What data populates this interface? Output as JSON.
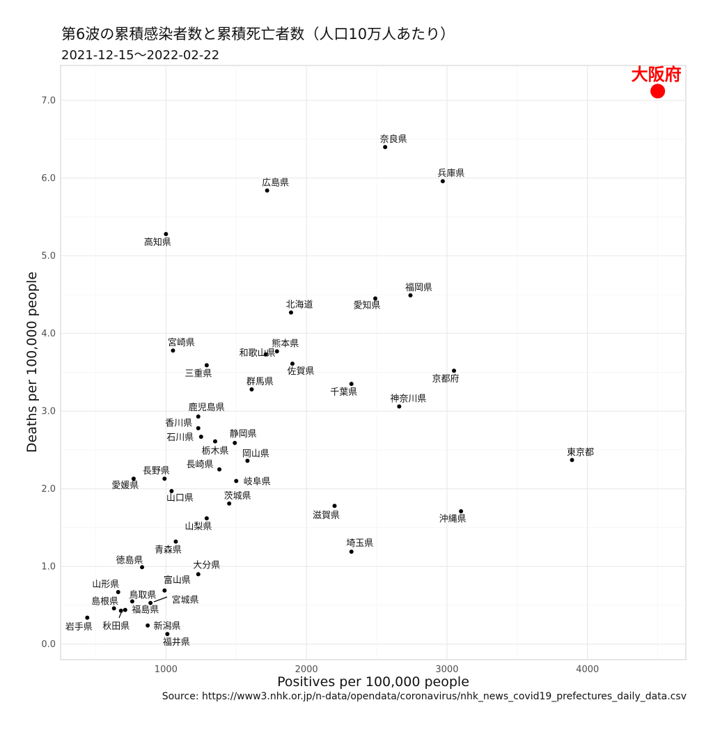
{
  "header": {
    "title": "第6波の累積感染者数と累積死亡者数（人口10万人あたり）",
    "subtitle": "2021-12-15〜2022-02-22",
    "caption": "Source:  https://www3.nhk.or.jp/n-data/opendata/coronavirus/nhk_news_covid19_prefectures_daily_data.csv"
  },
  "chart_data": {
    "type": "scatter",
    "title": "第6波の累積感染者数と累積死亡者数（人口10万人あたり）",
    "subtitle": "2021-12-15〜2022-02-22",
    "xlabel": "Positives per 100,000 people",
    "ylabel": "Deaths per 100,000 people",
    "xlim": [
      250,
      4700
    ],
    "ylim": [
      -0.2,
      7.45
    ],
    "x_ticks": [
      1000,
      2000,
      3000,
      4000
    ],
    "x_tick_labels": [
      "1000",
      "2000",
      "3000",
      "4000"
    ],
    "y_ticks": [
      0,
      1,
      2,
      3,
      4,
      5,
      6,
      7
    ],
    "y_tick_labels": [
      "0.0",
      "1.0",
      "2.0",
      "3.0",
      "4.0",
      "5.0",
      "6.0",
      "7.0"
    ],
    "grid": true,
    "highlight_color": "#ff0000",
    "point_color": "#000000",
    "points": [
      {
        "label": "大阪府",
        "x": 4500,
        "y": 7.12,
        "highlight": true
      },
      {
        "label": "奈良県",
        "x": 2560,
        "y": 6.4
      },
      {
        "label": "兵庫県",
        "x": 2970,
        "y": 5.96
      },
      {
        "label": "広島県",
        "x": 1720,
        "y": 5.84
      },
      {
        "label": "高知県",
        "x": 1000,
        "y": 5.28
      },
      {
        "label": "福岡県",
        "x": 2740,
        "y": 4.49
      },
      {
        "label": "愛知県",
        "x": 2490,
        "y": 4.45
      },
      {
        "label": "北海道",
        "x": 1890,
        "y": 4.27
      },
      {
        "label": "宮崎県",
        "x": 1050,
        "y": 3.78
      },
      {
        "label": "熊本県",
        "x": 1790,
        "y": 3.77
      },
      {
        "label": "和歌山県",
        "x": 1710,
        "y": 3.73
      },
      {
        "label": "佐賀県",
        "x": 1900,
        "y": 3.61
      },
      {
        "label": "三重県",
        "x": 1290,
        "y": 3.59
      },
      {
        "label": "京都府",
        "x": 3050,
        "y": 3.52
      },
      {
        "label": "千葉県",
        "x": 2320,
        "y": 3.35
      },
      {
        "label": "群馬県",
        "x": 1610,
        "y": 3.28
      },
      {
        "label": "神奈川県",
        "x": 2660,
        "y": 3.06
      },
      {
        "label": "鹿児島県",
        "x": 1230,
        "y": 2.93
      },
      {
        "label": "香川県",
        "x": 1230,
        "y": 2.78
      },
      {
        "label": "石川県",
        "x": 1250,
        "y": 2.67
      },
      {
        "label": "栃木県",
        "x": 1350,
        "y": 2.61
      },
      {
        "label": "静岡県",
        "x": 1490,
        "y": 2.59
      },
      {
        "label": "東京都",
        "x": 3890,
        "y": 2.37
      },
      {
        "label": "岡山県",
        "x": 1580,
        "y": 2.36
      },
      {
        "label": "長崎県",
        "x": 1380,
        "y": 2.25
      },
      {
        "label": "長野県",
        "x": 990,
        "y": 2.13
      },
      {
        "label": "愛媛県",
        "x": 770,
        "y": 2.13
      },
      {
        "label": "岐阜県",
        "x": 1500,
        "y": 2.1
      },
      {
        "label": "山口県",
        "x": 1040,
        "y": 1.97
      },
      {
        "label": "茨城県",
        "x": 1450,
        "y": 1.81
      },
      {
        "label": "滋賀県",
        "x": 2200,
        "y": 1.78
      },
      {
        "label": "沖縄県",
        "x": 3100,
        "y": 1.71
      },
      {
        "label": "山梨県",
        "x": 1290,
        "y": 1.62
      },
      {
        "label": "青森県",
        "x": 1070,
        "y": 1.32
      },
      {
        "label": "埼玉県",
        "x": 2320,
        "y": 1.19
      },
      {
        "label": "徳島県",
        "x": 830,
        "y": 0.99
      },
      {
        "label": "大分県",
        "x": 1230,
        "y": 0.9
      },
      {
        "label": "富山県",
        "x": 990,
        "y": 0.69
      },
      {
        "label": "山形県",
        "x": 660,
        "y": 0.67
      },
      {
        "label": "鳥取県",
        "x": 760,
        "y": 0.55
      },
      {
        "label": "宮城県",
        "x": 890,
        "y": 0.53
      },
      {
        "label": "島根県",
        "x": 630,
        "y": 0.46
      },
      {
        "label": "福島県",
        "x": 710,
        "y": 0.44
      },
      {
        "label": "秋田県",
        "x": 680,
        "y": 0.43
      },
      {
        "label": "岩手県",
        "x": 440,
        "y": 0.34
      },
      {
        "label": "新潟県",
        "x": 870,
        "y": 0.24
      },
      {
        "label": "福井県",
        "x": 1010,
        "y": 0.13
      }
    ]
  }
}
